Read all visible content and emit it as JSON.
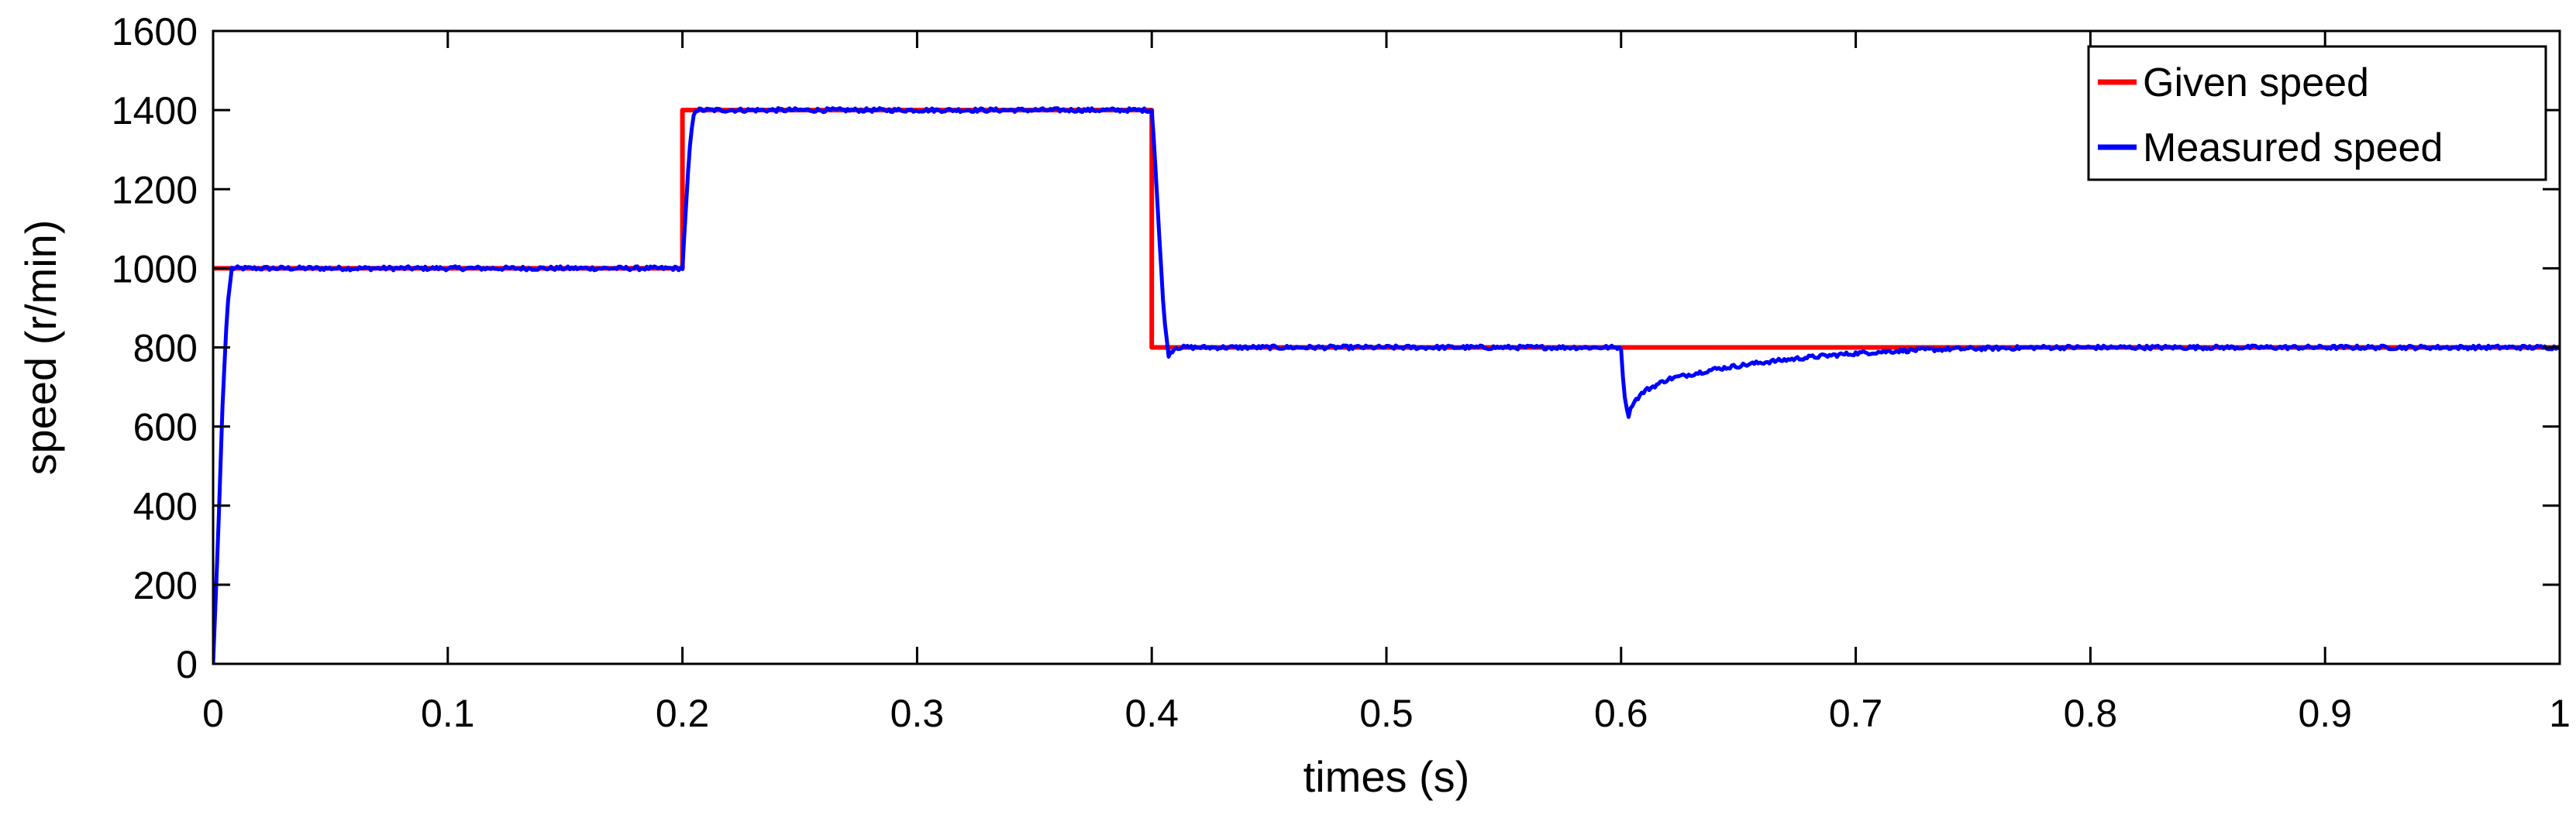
{
  "chart_data": {
    "type": "line",
    "title": "",
    "xlabel": "times (s)",
    "ylabel": "speed (r/min)",
    "xlim": [
      0,
      1
    ],
    "ylim": [
      0,
      1600
    ],
    "x_ticks": [
      0,
      0.1,
      0.2,
      0.3,
      0.4,
      0.5,
      0.6,
      0.7,
      0.8,
      0.9,
      1
    ],
    "x_tick_labels": [
      "0",
      "0.1",
      "0.2",
      "0.3",
      "0.4",
      "0.5",
      "0.6",
      "0.7",
      "0.8",
      "0.9",
      "1"
    ],
    "y_ticks": [
      0,
      200,
      400,
      600,
      800,
      1000,
      1200,
      1400,
      1600
    ],
    "y_tick_labels": [
      "0",
      "200",
      "400",
      "600",
      "800",
      "1000",
      "1200",
      "1400",
      "1600"
    ],
    "grid": false,
    "legend_position": "top-right",
    "series": [
      {
        "name": "Given speed",
        "color": "#ff0000",
        "x": [
          0,
          0.2,
          0.2,
          0.4,
          0.4,
          1.0
        ],
        "y": [
          1000,
          1000,
          1400,
          1400,
          800,
          800
        ]
      },
      {
        "name": "Measured speed",
        "color": "#0000ff",
        "x": [
          0,
          0.002,
          0.004,
          0.006,
          0.008,
          0.2,
          0.201,
          0.203,
          0.205,
          0.4,
          0.401,
          0.403,
          0.405,
          0.407,
          0.41,
          0.6,
          0.601,
          0.603,
          0.605,
          0.61,
          0.62,
          0.64,
          0.66,
          0.68,
          0.7,
          0.72,
          0.74,
          0.76,
          0.78,
          0.8,
          1.0
        ],
        "y": [
          0,
          300,
          650,
          900,
          1000,
          1000,
          1100,
          1300,
          1400,
          1400,
          1320,
          1100,
          900,
          780,
          800,
          800,
          700,
          625,
          660,
          690,
          720,
          745,
          762,
          775,
          785,
          792,
          796,
          798,
          800,
          800,
          800
        ]
      }
    ]
  }
}
